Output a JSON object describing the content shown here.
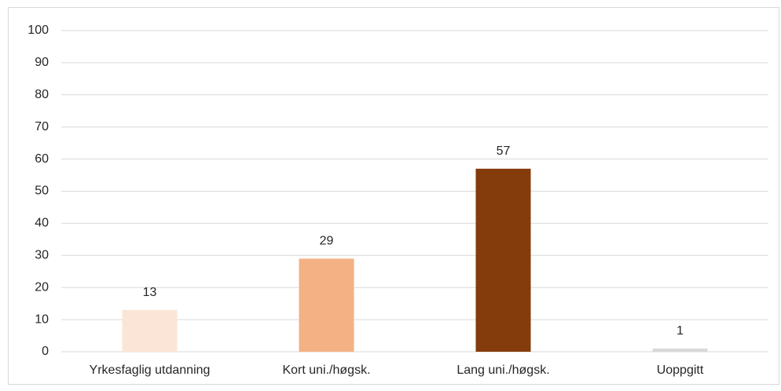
{
  "chart_data": {
    "type": "bar",
    "categories": [
      "Yrkesfaglig utdanning",
      "Kort uni./høgsk.",
      "Lang uni./høgsk.",
      "Uoppgitt"
    ],
    "values": [
      13,
      29,
      57,
      1
    ],
    "colors": [
      "#fbe5d6",
      "#f4b183",
      "#843c0c",
      "#d9d9d9"
    ],
    "ylim": [
      0,
      100
    ],
    "yticks": [
      0,
      10,
      20,
      30,
      40,
      50,
      60,
      70,
      80,
      90,
      100
    ],
    "grid": true
  }
}
